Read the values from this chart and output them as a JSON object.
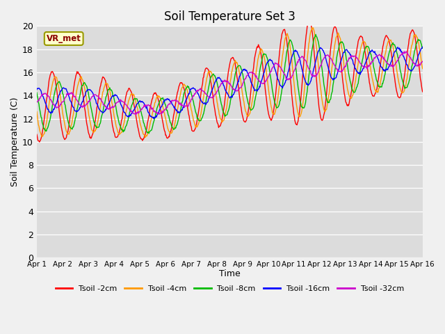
{
  "title": "Soil Temperature Set 3",
  "xlabel": "Time",
  "ylabel": "Soil Temperature (C)",
  "ylim": [
    0,
    20
  ],
  "yticks": [
    0,
    2,
    4,
    6,
    8,
    10,
    12,
    14,
    16,
    18,
    20
  ],
  "annotation": "VR_met",
  "colors": {
    "Tsoil -2cm": "#ff0000",
    "Tsoil -4cm": "#ff9900",
    "Tsoil -8cm": "#00bb00",
    "Tsoil -16cm": "#0000ff",
    "Tsoil -32cm": "#cc00cc"
  },
  "legend_labels": [
    "Tsoil -2cm",
    "Tsoil -4cm",
    "Tsoil -8cm",
    "Tsoil -16cm",
    "Tsoil -32cm"
  ],
  "bg_color": "#dcdcdc",
  "fig_bg_color": "#f0f0f0",
  "n_days": 15,
  "pts_per_day": 48,
  "x_tick_labels": [
    "Apr 1",
    "Apr 2",
    "Apr 3",
    "Apr 4",
    "Apr 5",
    "Apr 6",
    "Apr 7",
    "Apr 8",
    "Apr 9",
    "Apr 10",
    "Apr 11",
    "Apr 12",
    "Apr 13",
    "Apr 14",
    "Apr 15",
    "Apr 16"
  ],
  "linewidth": 1.0
}
